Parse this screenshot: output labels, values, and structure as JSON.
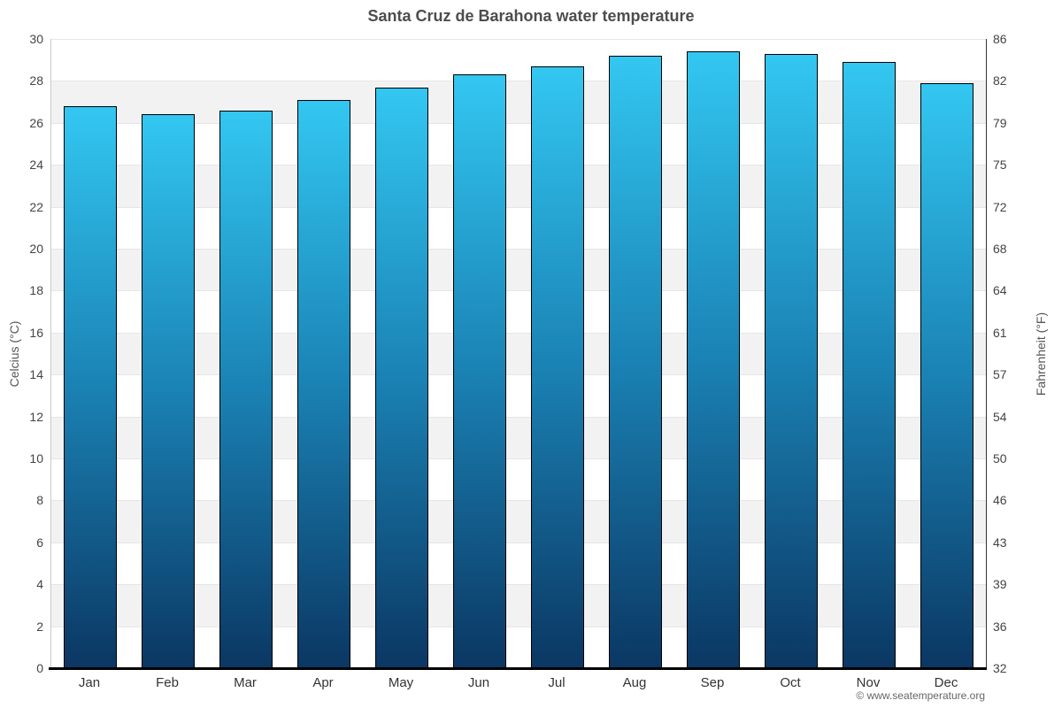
{
  "title": "Santa Cruz de Barahona water temperature",
  "footer": {
    "copyright": "© www.seatemperature.org"
  },
  "chart_data": {
    "type": "bar",
    "title": "Santa Cruz de Barahona water temperature",
    "categories": [
      "Jan",
      "Feb",
      "Mar",
      "Apr",
      "May",
      "Jun",
      "Jul",
      "Aug",
      "Sep",
      "Oct",
      "Nov",
      "Dec"
    ],
    "series": [
      {
        "name": "Water temperature (°C)",
        "values": [
          26.8,
          26.4,
          26.6,
          27.1,
          27.7,
          28.3,
          28.7,
          29.2,
          29.4,
          29.3,
          28.9,
          27.9
        ]
      }
    ],
    "xlabel": "",
    "ylabel_left": "Celcius (°C)",
    "ylabel_right": "Fahrenheit (°F)",
    "ylim": [
      0,
      30
    ],
    "ytick_step": 2,
    "yticks_celsius": [
      30,
      28,
      26,
      24,
      22,
      20,
      18,
      16,
      14,
      12,
      10,
      8,
      6,
      4,
      2,
      0
    ],
    "yticks_fahrenheit": [
      86,
      82,
      79,
      75,
      72,
      68,
      64,
      61,
      57,
      54,
      50,
      46,
      43,
      39,
      36,
      32
    ],
    "grid": "alternating horizontal bands, top band white",
    "legend": "none",
    "colors": {
      "bar_gradient_top": "#33c7f1",
      "bar_gradient_mid": "#1a82b4",
      "bar_gradient_bottom": "#0b3763",
      "bar_border": "#000000",
      "band_gray": "#f2f2f2",
      "gridline": "#e6e6e6",
      "left_axis_line": "#c9c9c9",
      "right_axis_line": "#333333",
      "bottom_axis_line": "#000000",
      "title_color": "#4d4d4d",
      "tick_label_color": "#444444",
      "axis_title_color": "#555555",
      "footer_color": "#666666"
    }
  }
}
